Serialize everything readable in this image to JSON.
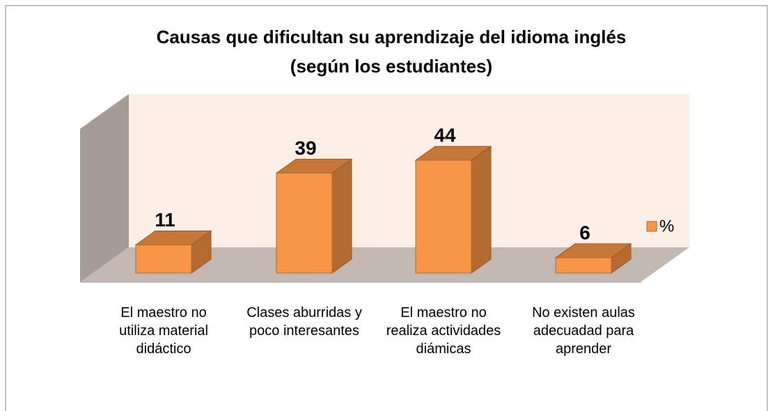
{
  "chart_data": {
    "type": "bar3d",
    "title": "Causas  que dificultan su aprendizaje del idioma inglés",
    "subtitle": "(según los estudiantes)",
    "categories": [
      "El maestro no utiliza material didáctico",
      "Clases aburridas y poco interesantes",
      "El maestro no realiza actividades diámicas",
      "No existen aulas adecuadad para aprender"
    ],
    "series": [
      {
        "name": "%",
        "color": "#f79646",
        "values": [
          11,
          39,
          44,
          6
        ]
      }
    ],
    "legend": "right"
  }
}
